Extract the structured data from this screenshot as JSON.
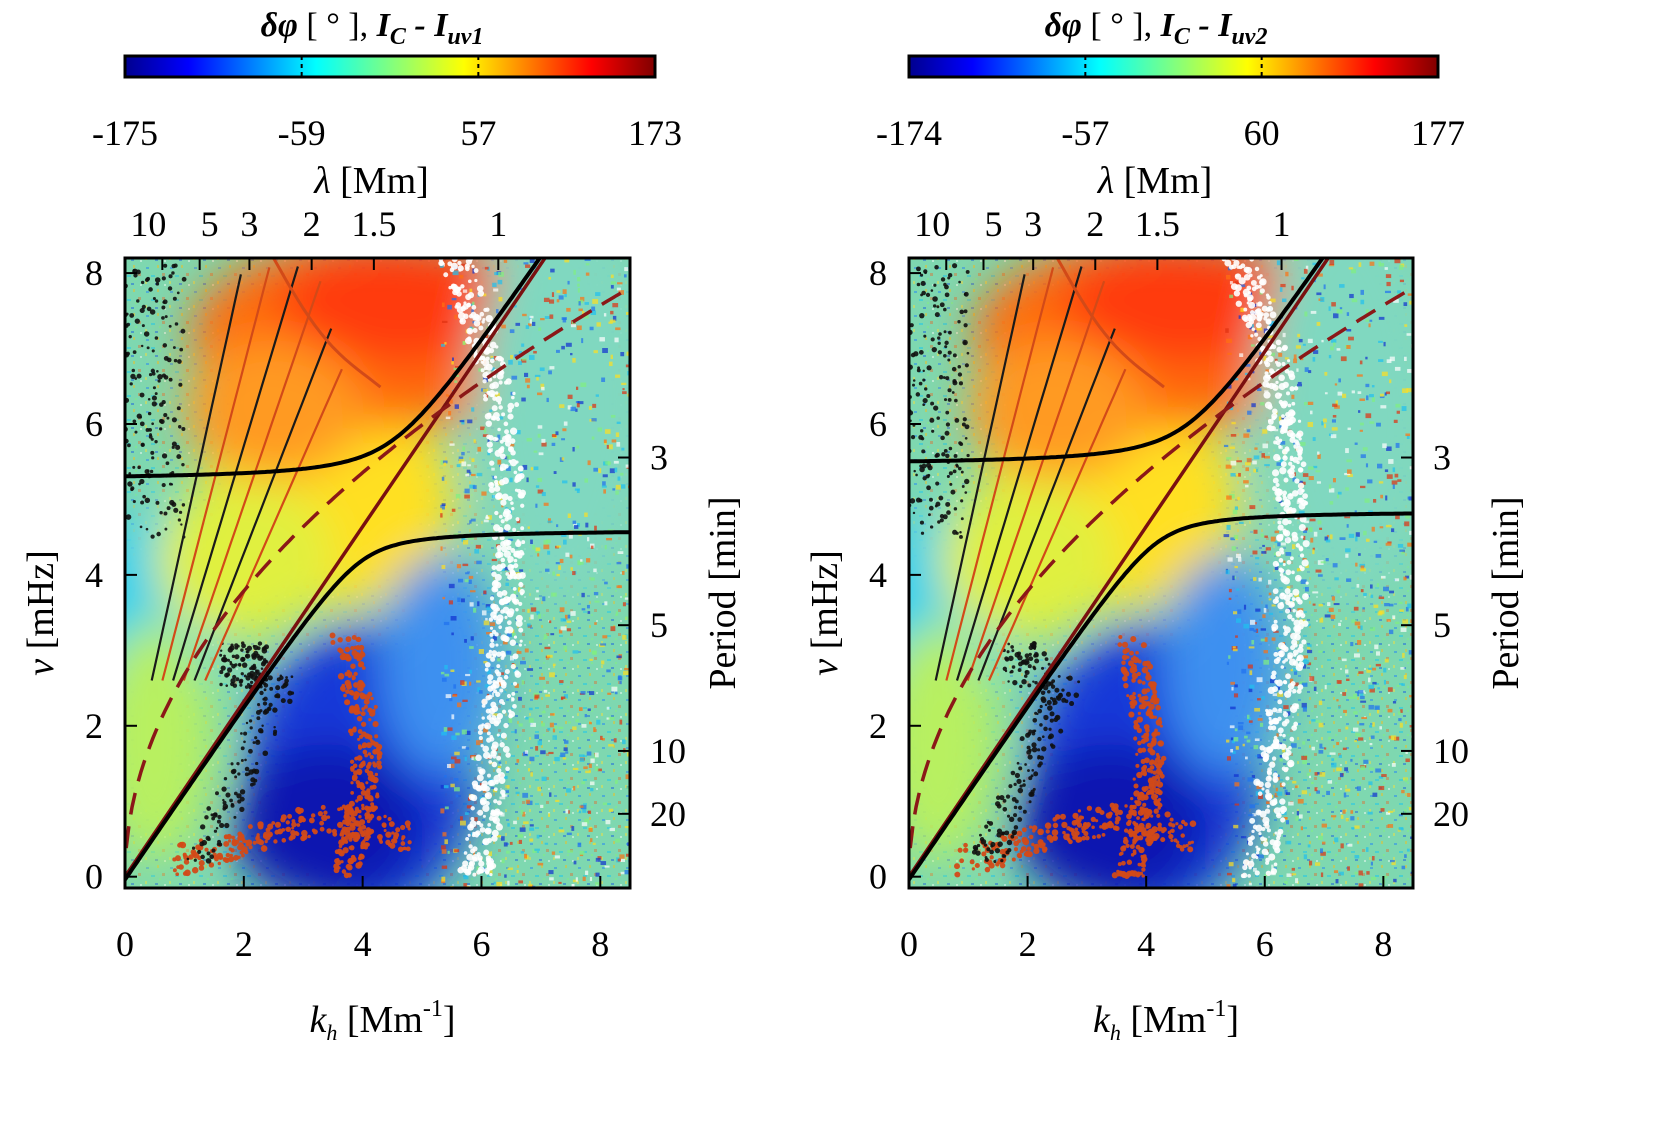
{
  "chart_data": [
    {
      "type": "heatmap",
      "panel": "left",
      "colorbar": {
        "title": "δφ [ ° ],   I_C - I_uv1",
        "title_parts": {
          "symbol": "δφ",
          "unit": "[ ° ],",
          "var_main": "I",
          "var_sub1": "C",
          "dash": " - ",
          "var_sub2": "uv1"
        },
        "ticks": [
          "-175",
          "-59",
          "57",
          "173"
        ],
        "range": [
          -175,
          173
        ],
        "colormap": "jet"
      },
      "xlabel": "k_h  [Mm^-1]",
      "xlabel_parts": {
        "main": "k",
        "sub": "h",
        "unit": "[Mm",
        "sup": "-1",
        "close": "]"
      },
      "ylabel": "ν [mHz]",
      "ylabel_parts": {
        "symbol": "ν",
        "unit": " [mHz]"
      },
      "top_axis_label": "λ [Mm]",
      "top_axis_parts": {
        "symbol": "λ",
        "unit": " [Mm]"
      },
      "right_axis_label": "Period [min]",
      "xlim": [
        0,
        8.5
      ],
      "ylim": [
        -0.15,
        8.2
      ],
      "x_ticks": [
        "0",
        "2",
        "4",
        "6",
        "8"
      ],
      "y_ticks": [
        "0",
        "2",
        "4",
        "6",
        "8"
      ],
      "top_ticks": [
        "10",
        "5",
        "3",
        "2",
        "1.5",
        "1"
      ],
      "top_tick_values": [
        10,
        5,
        3,
        2,
        1.5,
        1
      ],
      "right_ticks": [
        "3",
        "5",
        "10",
        "20"
      ],
      "right_tick_values": [
        3,
        5,
        10,
        20
      ],
      "curves": {
        "lower_branch_asymptote_mHz": 4.6,
        "upper_branch_intercept_mHz": 5.25,
        "solid_line_slope": 1.16,
        "dashed_line_slope": 2.55
      },
      "colors": {
        "fmode_curve": "#000000",
        "lamb_line": "#7a1010",
        "dashed_line": "#8b1818",
        "white_contour": "#ffffff",
        "orange_contour": "#d24a18"
      }
    },
    {
      "type": "heatmap",
      "panel": "right",
      "colorbar": {
        "title": "δφ [ ° ],   I_C - I_uv2",
        "title_parts": {
          "symbol": "δφ",
          "unit": "[ ° ],",
          "var_main": "I",
          "var_sub1": "C",
          "dash": " - ",
          "var_sub2": "uv2"
        },
        "ticks": [
          "-174",
          "-57",
          "60",
          "177"
        ],
        "range": [
          -174,
          177
        ],
        "colormap": "jet"
      },
      "xlabel": "k_h  [Mm^-1]",
      "xlabel_parts": {
        "main": "k",
        "sub": "h",
        "unit": "[Mm",
        "sup": "-1",
        "close": "]"
      },
      "ylabel": "ν [mHz]",
      "ylabel_parts": {
        "symbol": "ν",
        "unit": " [mHz]"
      },
      "top_axis_label": "λ [Mm]",
      "top_axis_parts": {
        "symbol": "λ",
        "unit": " [Mm]"
      },
      "right_axis_label": "Period [min]",
      "xlim": [
        0,
        8.5
      ],
      "ylim": [
        -0.15,
        8.2
      ],
      "x_ticks": [
        "0",
        "2",
        "4",
        "6",
        "8"
      ],
      "y_ticks": [
        "0",
        "2",
        "4",
        "6",
        "8"
      ],
      "top_ticks": [
        "10",
        "5",
        "3",
        "2",
        "1.5",
        "1"
      ],
      "top_tick_values": [
        10,
        5,
        3,
        2,
        1.5,
        1
      ],
      "right_ticks": [
        "3",
        "5",
        "10",
        "20"
      ],
      "right_tick_values": [
        3,
        5,
        10,
        20
      ],
      "curves": {
        "lower_branch_asymptote_mHz": 4.85,
        "upper_branch_intercept_mHz": 5.45,
        "solid_line_slope": 1.16,
        "dashed_line_slope": 2.55
      },
      "colors": {
        "fmode_curve": "#000000",
        "lamb_line": "#7a1010",
        "dashed_line": "#8b1818",
        "white_contour": "#ffffff",
        "orange_contour": "#d24a18"
      }
    }
  ]
}
